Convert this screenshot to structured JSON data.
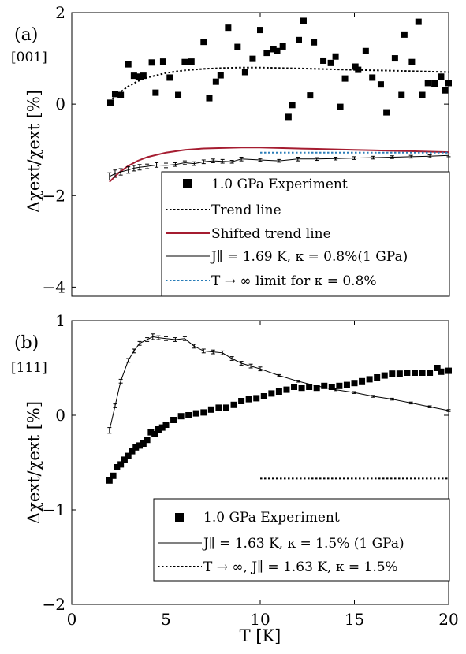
{
  "panels": [
    {
      "label": "(a)",
      "direction": "[001]",
      "ylabel": "Δχext/χext [%]",
      "legend": [
        "1.0 GPa Experiment",
        "Trend line",
        "Shifted trend line",
        "J∥ = 1.69 K, κ = 0.8%(1 GPa)",
        "T → ∞ limit for κ = 0.8%"
      ]
    },
    {
      "label": "(b)",
      "direction": "[111]",
      "ylabel": "Δχext/χext [%]",
      "legend": [
        "1.0 GPa Experiment",
        "J∥ = 1.63 K, κ = 1.5% (1 GPa)",
        "T → ∞, J∥ = 1.63 K, κ = 1.5%"
      ]
    }
  ],
  "xlabel": "T [K]",
  "colors": {
    "data": "#000000",
    "trend": "#000000",
    "shifted": "#a51c30",
    "limit": "#2a7db8",
    "model": "#000000"
  },
  "chart_data": [
    {
      "type": "scatter",
      "xlim": [
        0,
        20
      ],
      "ylim": [
        -4.2,
        2
      ],
      "xticks": [
        "0",
        "5",
        "10",
        "15",
        "20"
      ],
      "yticks": [
        "2",
        "0",
        "−2",
        "−4"
      ],
      "ytick_values": [
        2,
        0,
        -2,
        -4
      ],
      "grid": false,
      "legend_position": "bottom-right",
      "series": [
        {
          "name": "1.0 GPa Experiment",
          "kind": "markers",
          "x": [
            2.05,
            2.3,
            2.6,
            3.0,
            3.3,
            3.55,
            3.8,
            4.25,
            4.45,
            4.85,
            5.2,
            5.65,
            6.0,
            6.35,
            7.0,
            7.3,
            7.65,
            7.9,
            8.3,
            8.8,
            9.2,
            9.6,
            10.0,
            10.35,
            10.7,
            10.9,
            11.2,
            11.5,
            11.7,
            12.05,
            12.3,
            12.65,
            12.85,
            13.35,
            13.75,
            14.0,
            14.25,
            14.5,
            15.05,
            15.2,
            15.6,
            15.95,
            16.4,
            16.7,
            17.15,
            17.5,
            17.65,
            18.05,
            18.4,
            18.6,
            18.9,
            19.25,
            19.6,
            19.8,
            20.0
          ],
          "y": [
            0.03,
            0.22,
            0.2,
            0.87,
            0.62,
            0.6,
            0.62,
            0.91,
            0.25,
            0.93,
            0.58,
            0.2,
            0.92,
            0.93,
            1.36,
            0.13,
            0.49,
            0.63,
            1.67,
            1.25,
            0.7,
            0.99,
            1.62,
            1.12,
            1.2,
            1.16,
            1.26,
            -0.28,
            -0.02,
            1.4,
            1.82,
            0.19,
            1.35,
            0.95,
            0.9,
            1.04,
            -0.06,
            0.56,
            0.82,
            0.75,
            1.16,
            0.58,
            0.43,
            -0.18,
            1.0,
            0.2,
            1.52,
            0.92,
            1.8,
            0.2,
            0.46,
            0.45,
            0.6,
            0.3,
            0.46
          ]
        },
        {
          "name": "Trend line",
          "kind": "dotted",
          "x": [
            2.0,
            2.5,
            3.0,
            3.5,
            4.0,
            5.0,
            6.0,
            7.0,
            8.0,
            9.0,
            10.0,
            11.0,
            12.0,
            13.0,
            14.0,
            15.0,
            16.0,
            17.0,
            18.0,
            19.0,
            20.0
          ],
          "y": [
            0.05,
            0.24,
            0.39,
            0.5,
            0.58,
            0.68,
            0.74,
            0.77,
            0.79,
            0.8,
            0.8,
            0.79,
            0.78,
            0.77,
            0.76,
            0.75,
            0.74,
            0.73,
            0.72,
            0.71,
            0.7
          ]
        },
        {
          "name": "Shifted trend line",
          "kind": "solid",
          "x": [
            2.0,
            2.5,
            3.0,
            3.5,
            4.0,
            5.0,
            6.0,
            7.0,
            8.0,
            9.0,
            10.0,
            11.0,
            12.0,
            13.0,
            14.0,
            15.0,
            16.0,
            17.0,
            18.0,
            19.0,
            20.0
          ],
          "y": [
            -1.7,
            -1.5,
            -1.35,
            -1.24,
            -1.16,
            -1.06,
            -1.0,
            -0.97,
            -0.96,
            -0.95,
            -0.95,
            -0.96,
            -0.97,
            -0.98,
            -0.99,
            -1.0,
            -1.01,
            -1.02,
            -1.03,
            -1.04,
            -1.05
          ]
        },
        {
          "name": "J∥ = 1.69 K, κ = 0.8%(1 GPa)",
          "kind": "solid-errorbar",
          "x": [
            2.0,
            2.3,
            2.6,
            3.0,
            3.3,
            3.6,
            4.0,
            4.5,
            5.0,
            5.5,
            6.0,
            6.5,
            7.0,
            7.5,
            8.0,
            8.5,
            9.0,
            10.0,
            11.0,
            12.0,
            13.0,
            14.0,
            15.0,
            16.0,
            17.0,
            18.0,
            19.0,
            20.0
          ],
          "y": [
            -1.58,
            -1.52,
            -1.48,
            -1.44,
            -1.4,
            -1.38,
            -1.36,
            -1.33,
            -1.34,
            -1.32,
            -1.28,
            -1.3,
            -1.26,
            -1.24,
            -1.25,
            -1.26,
            -1.2,
            -1.22,
            -1.24,
            -1.2,
            -1.2,
            -1.19,
            -1.18,
            -1.17,
            -1.16,
            -1.15,
            -1.14,
            -1.12
          ],
          "err": [
            0.08,
            0.08,
            0.07,
            0.07,
            0.06,
            0.06,
            0.05,
            0.05,
            0.05,
            0.04,
            0.04,
            0.04,
            0.04,
            0.04,
            0.04,
            0.03,
            0.04,
            0.03,
            0.03,
            0.04,
            0.03,
            0.03,
            0.03,
            0.03,
            0.03,
            0.03,
            0.03,
            0.03
          ]
        },
        {
          "name": "T → ∞ limit for κ = 0.8%",
          "kind": "dotted",
          "x": [
            10.0,
            20.0
          ],
          "y": [
            -1.06,
            -1.06
          ]
        }
      ]
    },
    {
      "type": "scatter",
      "xlim": [
        0,
        20
      ],
      "ylim": [
        -2,
        1
      ],
      "xticks": [
        "0",
        "5",
        "10",
        "15",
        "20"
      ],
      "yticks": [
        "1",
        "0",
        "−1",
        "−2"
      ],
      "ytick_values": [
        1,
        0,
        -1,
        -2
      ],
      "grid": false,
      "legend_position": "bottom-right",
      "series": [
        {
          "name": "1.0 GPa Experiment",
          "kind": "markers",
          "x": [
            2.0,
            2.2,
            2.4,
            2.6,
            2.8,
            3.0,
            3.2,
            3.4,
            3.6,
            3.8,
            4.0,
            4.2,
            4.4,
            4.6,
            4.8,
            5.0,
            5.4,
            5.8,
            6.2,
            6.6,
            7.0,
            7.4,
            7.8,
            8.2,
            8.6,
            9.0,
            9.4,
            9.8,
            10.2,
            10.6,
            11.0,
            11.4,
            11.8,
            12.2,
            12.6,
            13.0,
            13.4,
            13.8,
            14.2,
            14.6,
            15.0,
            15.4,
            15.8,
            16.2,
            16.6,
            17.0,
            17.4,
            17.8,
            18.2,
            18.6,
            19.0,
            19.4,
            19.6,
            20.0
          ],
          "y": [
            -0.69,
            -0.64,
            -0.55,
            -0.52,
            -0.47,
            -0.43,
            -0.38,
            -0.34,
            -0.32,
            -0.3,
            -0.26,
            -0.18,
            -0.2,
            -0.15,
            -0.13,
            -0.1,
            -0.05,
            -0.01,
            0.0,
            0.02,
            0.03,
            0.06,
            0.08,
            0.08,
            0.11,
            0.15,
            0.17,
            0.18,
            0.2,
            0.23,
            0.25,
            0.27,
            0.3,
            0.29,
            0.3,
            0.29,
            0.31,
            0.3,
            0.31,
            0.32,
            0.34,
            0.36,
            0.38,
            0.4,
            0.42,
            0.44,
            0.44,
            0.45,
            0.45,
            0.45,
            0.45,
            0.5,
            0.46,
            0.47
          ]
        },
        {
          "name": "J∥ = 1.63 K, κ = 1.5% (1 GPa)",
          "kind": "solid-errorbar",
          "x": [
            2.0,
            2.3,
            2.6,
            3.0,
            3.3,
            3.6,
            4.0,
            4.3,
            4.6,
            5.0,
            5.5,
            6.0,
            6.5,
            7.0,
            7.5,
            8.0,
            8.5,
            9.0,
            9.5,
            10.0,
            11.0,
            12.0,
            13.0,
            14.0,
            15.0,
            16.0,
            17.0,
            18.0,
            19.0,
            20.0
          ],
          "y": [
            -0.16,
            0.1,
            0.36,
            0.58,
            0.68,
            0.76,
            0.8,
            0.83,
            0.82,
            0.81,
            0.8,
            0.81,
            0.73,
            0.68,
            0.67,
            0.66,
            0.6,
            0.55,
            0.52,
            0.49,
            0.42,
            0.36,
            0.31,
            0.27,
            0.24,
            0.2,
            0.17,
            0.13,
            0.09,
            0.05
          ],
          "err": [
            0.03,
            0.02,
            0.02,
            0.02,
            0.02,
            0.02,
            0.02,
            0.03,
            0.02,
            0.02,
            0.02,
            0.02,
            0.02,
            0.02,
            0.02,
            0.02,
            0.02,
            0.02,
            0.02,
            0.02,
            0.01,
            0.01,
            0.01,
            0.01,
            0.01,
            0.01,
            0.01,
            0.01,
            0.01,
            0.01
          ]
        },
        {
          "name": "T → ∞, J∥ = 1.63 K, κ = 1.5%",
          "kind": "dotted",
          "x": [
            10.0,
            20.0
          ],
          "y": [
            -0.67,
            -0.67
          ]
        }
      ]
    }
  ]
}
